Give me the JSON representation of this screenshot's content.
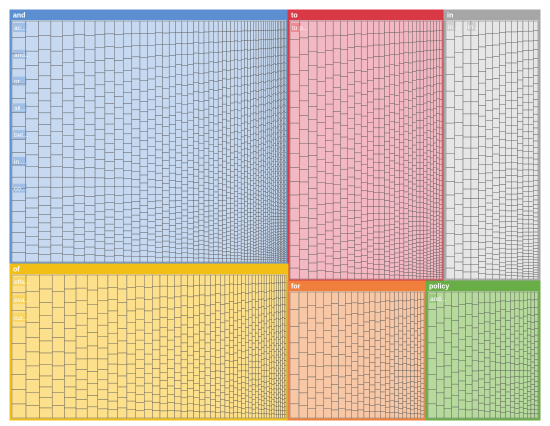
{
  "chart_data": {
    "type": "treemap",
    "title": "",
    "groups": [
      {
        "name": "and",
        "color": "#5b8fd1",
        "fill": "#c6d9f1",
        "value": 30,
        "cols": 52,
        "rows": 55,
        "visible_labels": [
          "ac...",
          "and...",
          "or...",
          "all...",
          "bet...",
          "in ...",
          "co..."
        ]
      },
      {
        "name": "to",
        "color": "#d93845",
        "fill": "#f4b8c3",
        "value": 13,
        "cols": 28,
        "rows": 52,
        "visible_labels": [
          "to p..."
        ]
      },
      {
        "name": "of",
        "color": "#f2bf17",
        "fill": "#fde08c",
        "value": 17,
        "cols": 46,
        "rows": 26,
        "visible_labels": [
          "effe...",
          "eva...",
          "cur..."
        ]
      },
      {
        "name": "in",
        "color": "#a6a6a6",
        "fill": "#e6e6e6",
        "value": 7,
        "cols": 14,
        "rows": 52,
        "visible_labels": [
          "in ...",
          "in ..."
        ]
      },
      {
        "name": "for",
        "color": "#ef7f3a",
        "fill": "#f8c8a6",
        "value": 7,
        "cols": 24,
        "rows": 22,
        "visible_labels": []
      },
      {
        "name": "policy",
        "color": "#68ad45",
        "fill": "#b5da9c",
        "value": 6,
        "cols": 20,
        "rows": 22,
        "visible_labels": [
          "and..."
        ]
      }
    ]
  }
}
